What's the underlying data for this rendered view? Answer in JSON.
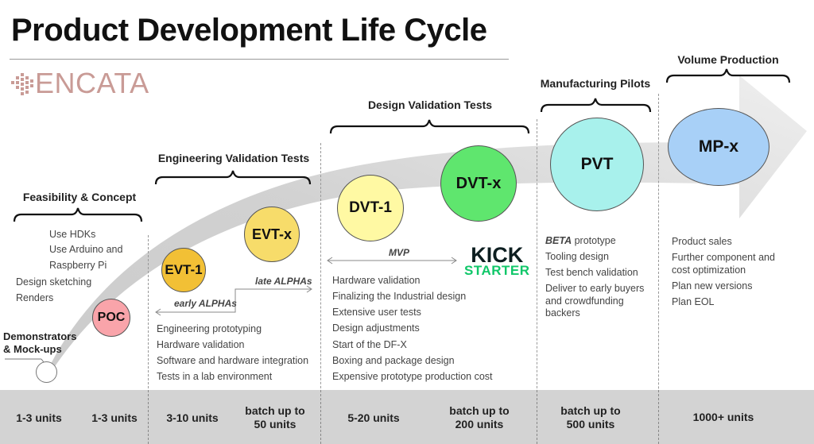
{
  "title": "Product Development Life Cycle",
  "logo": {
    "text": "ENCATA",
    "color": "#c99b96"
  },
  "stages": {
    "feasibility": "Feasibility & Concept",
    "evt": "Engineering Validation Tests",
    "dvt": "Design Validation Tests",
    "pvt": "Manufacturing Pilots",
    "mp": "Volume Production"
  },
  "circles": {
    "demo": "",
    "poc": "POC",
    "evt1": "EVT-1",
    "evtx": "EVT-x",
    "dvt1": "DVT-1",
    "dvtx": "DVT-x",
    "pvt": "PVT",
    "mpx": "MP-x"
  },
  "circle_colors": {
    "poc": "#f9a4aa",
    "evt1": "#f2c035",
    "evtx": "#f7dc6a",
    "dvt1": "#fff9a3",
    "dvtx": "#5fe66e",
    "pvt": "#a8f1ec",
    "mpx": "#a8d0f7"
  },
  "demonstrators": {
    "line1": "Demonstrators",
    "line2": "& Mock-ups"
  },
  "feasibility_notes": [
    "Use HDKs",
    "Use Arduino and",
    "Raspberry Pi",
    "Design sketching",
    "Renders"
  ],
  "evt_notes": [
    "Engineering prototyping",
    "Hardware validation",
    "Software and hardware integration",
    "Tests in a lab environment"
  ],
  "evt_arrows": {
    "early": "early ALPHAs",
    "late": "late ALPHAs"
  },
  "mvp_label": "MVP",
  "kickstarter": {
    "line1": "KICK",
    "line2": "STARTER"
  },
  "dvt_notes": [
    "Hardware validation",
    "Finalizing the Industrial design",
    "Extensive user tests",
    "Design adjustments",
    "Start of the DF-X",
    "Boxing and package design",
    "Expensive prototype production cost"
  ],
  "pvt_notes": {
    "beta_bold": "BETA",
    "beta_rest": " prototype",
    "items": [
      "Tooling design",
      "Test bench validation",
      "Deliver to early buyers",
      "and crowdfunding",
      "backers"
    ]
  },
  "mp_notes": [
    "Product sales",
    "Further component and",
    "cost optimization",
    "Plan new versions",
    "Plan EOL"
  ],
  "units": [
    {
      "line1": "1-3 units",
      "line2": ""
    },
    {
      "line1": "1-3 units",
      "line2": ""
    },
    {
      "line1": "3-10 units",
      "line2": ""
    },
    {
      "line1": "batch up to",
      "line2": "50 units"
    },
    {
      "line1": "5-20 units",
      "line2": ""
    },
    {
      "line1": "batch up to",
      "line2": "200 units"
    },
    {
      "line1": "batch up to",
      "line2": "500 units"
    },
    {
      "line1": "1000+ units",
      "line2": ""
    }
  ]
}
